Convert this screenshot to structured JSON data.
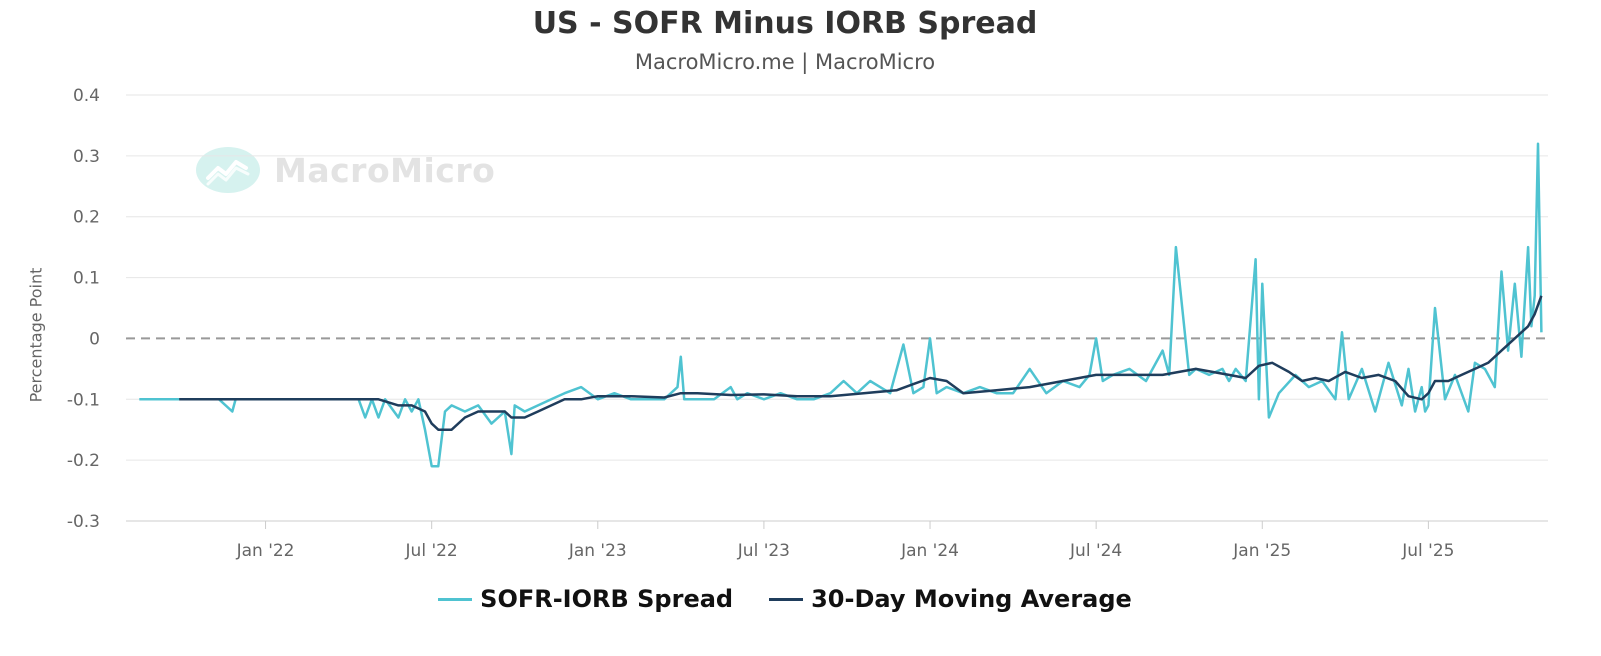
{
  "chart_data": {
    "type": "line",
    "title": "US - SOFR Minus IORB Spread",
    "subtitle": "MacroMicro.me | MacroMicro",
    "ylabel": "Percentage Point",
    "watermark": "MacroMicro",
    "ylim": [
      -0.3,
      0.4
    ],
    "xlim": [
      2021.58,
      2025.86
    ],
    "y_ticks": [
      "0.4",
      "0.3",
      "0.2",
      "0.1",
      "0",
      "-0.1",
      "-0.2",
      "-0.3"
    ],
    "y_tick_values": [
      0.4,
      0.3,
      0.2,
      0.1,
      0,
      -0.1,
      -0.2,
      -0.3
    ],
    "x_ticks": [
      "Jan '22",
      "Jul '22",
      "Jan '23",
      "Jul '23",
      "Jan '24",
      "Jul '24",
      "Jan '25",
      "Jul '25"
    ],
    "x_tick_values": [
      2022.0,
      2022.5,
      2023.0,
      2023.5,
      2024.0,
      2024.5,
      2025.0,
      2025.5
    ],
    "zero_line": {
      "value": 0,
      "style": "dashed"
    },
    "grid": "horizontal",
    "legend_position": "bottom-center",
    "series": [
      {
        "name": "SOFR-IORB Spread",
        "color": "#4fc3d1",
        "x": [
          2021.62,
          2021.74,
          2021.86,
          2021.9,
          2021.91,
          2021.95,
          2022.0,
          2022.06,
          2022.1,
          2022.16,
          2022.2,
          2022.24,
          2022.28,
          2022.3,
          2022.32,
          2022.34,
          2022.36,
          2022.4,
          2022.42,
          2022.44,
          2022.46,
          2022.48,
          2022.5,
          2022.52,
          2022.54,
          2022.56,
          2022.6,
          2022.64,
          2022.68,
          2022.72,
          2022.74,
          2022.75,
          2022.78,
          2022.82,
          2022.86,
          2022.9,
          2022.95,
          2023.0,
          2023.05,
          2023.1,
          2023.15,
          2023.2,
          2023.24,
          2023.25,
          2023.26,
          2023.3,
          2023.35,
          2023.4,
          2023.42,
          2023.45,
          2023.5,
          2023.55,
          2023.6,
          2023.65,
          2023.7,
          2023.74,
          2023.78,
          2023.82,
          2023.88,
          2023.92,
          2023.95,
          2023.98,
          2024.0,
          2024.02,
          2024.05,
          2024.1,
          2024.15,
          2024.2,
          2024.25,
          2024.3,
          2024.35,
          2024.4,
          2024.45,
          2024.48,
          2024.5,
          2024.52,
          2024.55,
          2024.6,
          2024.65,
          2024.7,
          2024.72,
          2024.74,
          2024.78,
          2024.8,
          2024.84,
          2024.88,
          2024.9,
          2024.92,
          2024.95,
          2024.98,
          2024.99,
          2025.0,
          2025.02,
          2025.05,
          2025.1,
          2025.14,
          2025.18,
          2025.22,
          2025.24,
          2025.26,
          2025.3,
          2025.34,
          2025.38,
          2025.42,
          2025.44,
          2025.46,
          2025.48,
          2025.49,
          2025.5,
          2025.52,
          2025.55,
          2025.58,
          2025.62,
          2025.64,
          2025.67,
          2025.7,
          2025.72,
          2025.74,
          2025.76,
          2025.78,
          2025.8,
          2025.81,
          2025.82,
          2025.83,
          2025.84
        ],
        "values": [
          -0.1,
          -0.1,
          -0.1,
          -0.12,
          -0.1,
          -0.1,
          -0.1,
          -0.1,
          -0.1,
          -0.1,
          -0.1,
          -0.1,
          -0.1,
          -0.13,
          -0.1,
          -0.13,
          -0.1,
          -0.13,
          -0.1,
          -0.12,
          -0.1,
          -0.15,
          -0.21,
          -0.21,
          -0.12,
          -0.11,
          -0.12,
          -0.11,
          -0.14,
          -0.12,
          -0.19,
          -0.11,
          -0.12,
          -0.11,
          -0.1,
          -0.09,
          -0.08,
          -0.1,
          -0.09,
          -0.1,
          -0.1,
          -0.1,
          -0.08,
          -0.03,
          -0.1,
          -0.1,
          -0.1,
          -0.08,
          -0.1,
          -0.09,
          -0.1,
          -0.09,
          -0.1,
          -0.1,
          -0.09,
          -0.07,
          -0.09,
          -0.07,
          -0.09,
          -0.01,
          -0.09,
          -0.08,
          0.0,
          -0.09,
          -0.08,
          -0.09,
          -0.08,
          -0.09,
          -0.09,
          -0.05,
          -0.09,
          -0.07,
          -0.08,
          -0.06,
          0.0,
          -0.07,
          -0.06,
          -0.05,
          -0.07,
          -0.02,
          -0.06,
          0.15,
          -0.06,
          -0.05,
          -0.06,
          -0.05,
          -0.07,
          -0.05,
          -0.07,
          0.13,
          -0.1,
          0.09,
          -0.13,
          -0.09,
          -0.06,
          -0.08,
          -0.07,
          -0.1,
          0.01,
          -0.1,
          -0.05,
          -0.12,
          -0.04,
          -0.11,
          -0.05,
          -0.12,
          -0.08,
          -0.12,
          -0.11,
          0.05,
          -0.1,
          -0.06,
          -0.12,
          -0.04,
          -0.05,
          -0.08,
          0.11,
          -0.02,
          0.09,
          -0.03,
          0.15,
          0.02,
          0.07,
          0.32,
          0.01
        ]
      },
      {
        "name": "30-Day Moving Average",
        "color": "#1f3d5c",
        "x": [
          2021.74,
          2021.86,
          2021.95,
          2022.1,
          2022.2,
          2022.3,
          2022.34,
          2022.4,
          2022.44,
          2022.48,
          2022.5,
          2022.52,
          2022.56,
          2022.6,
          2022.64,
          2022.68,
          2022.72,
          2022.74,
          2022.78,
          2022.82,
          2022.86,
          2022.9,
          2022.95,
          2023.0,
          2023.05,
          2023.1,
          2023.2,
          2023.25,
          2023.3,
          2023.4,
          2023.5,
          2023.6,
          2023.7,
          2023.8,
          2023.9,
          2023.95,
          2024.0,
          2024.05,
          2024.1,
          2024.2,
          2024.3,
          2024.4,
          2024.5,
          2024.6,
          2024.7,
          2024.8,
          2024.9,
          2024.95,
          2024.99,
          2025.03,
          2025.08,
          2025.12,
          2025.16,
          2025.2,
          2025.25,
          2025.3,
          2025.35,
          2025.4,
          2025.44,
          2025.48,
          2025.5,
          2025.52,
          2025.56,
          2025.6,
          2025.64,
          2025.68,
          2025.72,
          2025.76,
          2025.8,
          2025.82,
          2025.84
        ],
        "values": [
          -0.1,
          -0.1,
          -0.1,
          -0.1,
          -0.1,
          -0.1,
          -0.1,
          -0.11,
          -0.11,
          -0.12,
          -0.14,
          -0.15,
          -0.15,
          -0.13,
          -0.12,
          -0.12,
          -0.12,
          -0.13,
          -0.13,
          -0.12,
          -0.11,
          -0.1,
          -0.1,
          -0.095,
          -0.095,
          -0.095,
          -0.097,
          -0.09,
          -0.09,
          -0.093,
          -0.092,
          -0.095,
          -0.095,
          -0.09,
          -0.085,
          -0.075,
          -0.065,
          -0.07,
          -0.09,
          -0.085,
          -0.08,
          -0.07,
          -0.06,
          -0.06,
          -0.06,
          -0.05,
          -0.06,
          -0.065,
          -0.045,
          -0.04,
          -0.055,
          -0.07,
          -0.065,
          -0.07,
          -0.055,
          -0.065,
          -0.06,
          -0.07,
          -0.095,
          -0.1,
          -0.09,
          -0.07,
          -0.07,
          -0.06,
          -0.05,
          -0.04,
          -0.02,
          0.0,
          0.02,
          0.04,
          0.07
        ]
      }
    ]
  }
}
